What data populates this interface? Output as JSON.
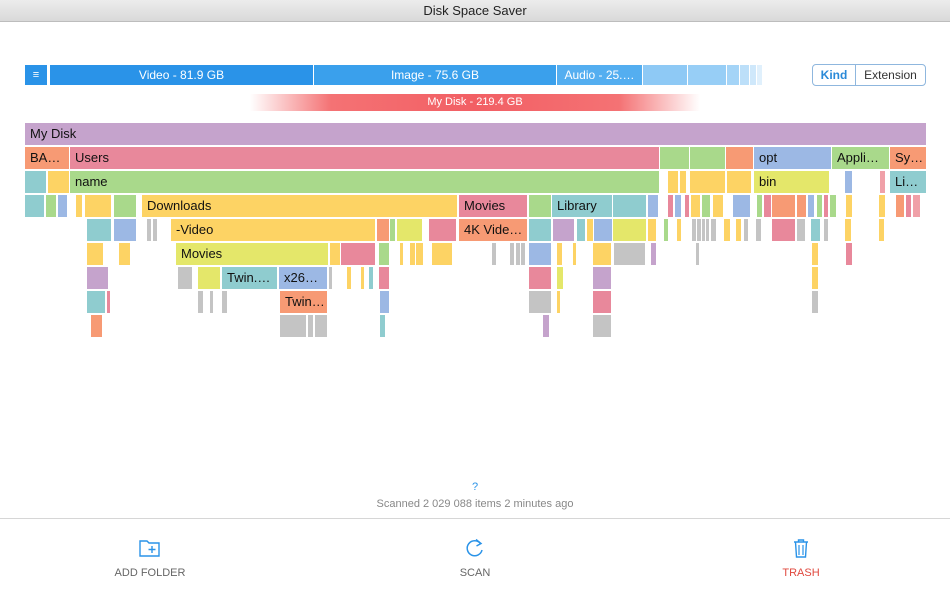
{
  "window": {
    "title": "Disk Space Saver"
  },
  "kinds": {
    "menu_icon": "menu-icon",
    "segments": [
      {
        "label": "Video - 81.9 GB",
        "color": "#2a93e8"
      },
      {
        "label": "Image - 75.6 GB",
        "color": "#3aa0ec"
      },
      {
        "label": "Audio - 25.…",
        "color": "#54aef0"
      }
    ],
    "small_segment_colors": [
      "#8ec9f5",
      "#97cef6",
      "#a4d4f7",
      "#bcdff9",
      "#cfe8fb",
      "#e0f0fc"
    ]
  },
  "view_toggle": {
    "kind_label": "Kind",
    "extension_label": "Extension",
    "selected": "Kind"
  },
  "disk_bar": {
    "label": "My Disk - 219.4 GB"
  },
  "treemap": {
    "labels": {
      "root": "My Disk",
      "ba": "BA…",
      "users": "Users",
      "opt": "opt",
      "appli": "Appli…",
      "sy": "Sy…",
      "name": "name",
      "bin": "bin",
      "li": "Li…",
      "downloads": "Downloads",
      "movies_top": "Movies",
      "library": "Library",
      "video": "-Video",
      "fourk": "4K Vide…",
      "movies_sub": "Movies",
      "twin1": "Twin.…",
      "x26": "x26…",
      "twin2": "Twin…"
    }
  },
  "help": {
    "label": "?"
  },
  "status": {
    "text": "Scanned 2 029 088 items 2 minutes ago"
  },
  "toolbar": {
    "add_folder": {
      "label": "ADD FOLDER",
      "icon": "add-folder-icon"
    },
    "scan": {
      "label": "SCAN",
      "icon": "refresh-icon"
    },
    "trash": {
      "label": "TRASH",
      "icon": "trash-icon",
      "color": "#e0483e"
    }
  }
}
